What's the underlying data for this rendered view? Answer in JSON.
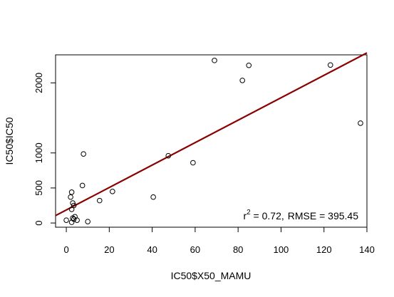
{
  "chart_data": {
    "type": "scatter",
    "title": "",
    "xlabel": "IC50$X50_MAMU",
    "ylabel": "IC50$IC50",
    "xlim": [
      -5,
      140
    ],
    "ylim": [
      -60,
      2400
    ],
    "xticks": [
      0,
      20,
      40,
      60,
      80,
      100,
      120,
      140
    ],
    "yticks": [
      0,
      500,
      1000,
      2000
    ],
    "x": [
      69,
      85,
      123,
      82,
      137,
      47.5,
      59,
      8,
      7.5,
      21.5,
      15.5,
      40.5,
      2.5,
      2,
      3,
      3.5,
      2.5,
      4,
      3,
      3.5,
      5,
      0,
      10,
      2.5
    ],
    "y": [
      2320,
      2250,
      2255,
      2035,
      1425,
      960,
      860,
      985,
      535,
      450,
      320,
      370,
      440,
      370,
      285,
      250,
      195,
      90,
      70,
      55,
      40,
      40,
      20,
      10
    ],
    "regression": {
      "color": "#8b0000",
      "x": [
        -5,
        140
      ],
      "y": [
        106,
        2428
      ]
    },
    "annotation": {
      "r_label": "r",
      "r_exp": "2",
      "r_value": " = 0.72,",
      "rmse_label": "RMSE",
      "rmse_value": " = 395.45"
    },
    "grid": false,
    "legend": "none"
  }
}
